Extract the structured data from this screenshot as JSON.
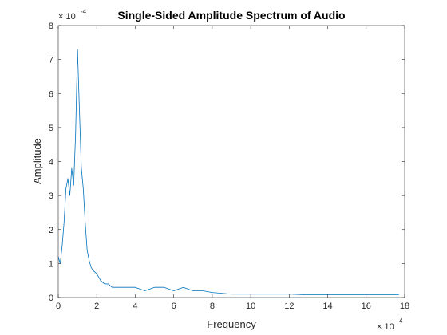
{
  "chart_data": {
    "type": "line",
    "title": "Single-Sided Amplitude Spectrum of Audio",
    "xlabel": "Frequency",
    "ylabel": "Amplitude",
    "xlim": [
      0,
      180000
    ],
    "ylim": [
      0,
      0.0008
    ],
    "x_ticks": [
      0,
      20000,
      40000,
      60000,
      80000,
      100000,
      120000,
      140000,
      160000,
      180000
    ],
    "x_tick_labels": [
      "0",
      "2",
      "4",
      "6",
      "8",
      "10",
      "12",
      "14",
      "16",
      "18"
    ],
    "y_ticks": [
      0,
      0.0001,
      0.0002,
      0.0003,
      0.0004,
      0.0005,
      0.0006,
      0.0007,
      0.0008
    ],
    "y_tick_labels": [
      "0",
      "1",
      "2",
      "3",
      "4",
      "5",
      "6",
      "7",
      "8"
    ],
    "x_exponent_label": "× 10",
    "x_exponent_power": "4",
    "y_exponent_label": "× 10",
    "y_exponent_power": "-4",
    "line_color": "#0072BD",
    "series": [
      {
        "x": [
          0,
          1000,
          2000,
          3000,
          4000,
          5000,
          6000,
          7000,
          8000,
          9000,
          10000,
          11000,
          12000,
          13000,
          14000,
          15000,
          16000,
          17000,
          18000,
          20000,
          22000,
          24000,
          26000,
          28000,
          30000,
          35000,
          40000,
          45000,
          50000,
          55000,
          60000,
          65000,
          70000,
          75000,
          80000,
          90000,
          100000,
          110000,
          120000,
          130000,
          140000,
          150000,
          160000,
          170000,
          177000
        ],
        "values": [
          0.00012,
          0.0001,
          0.00015,
          0.00022,
          0.00032,
          0.00035,
          0.0003,
          0.00038,
          0.00033,
          0.00048,
          0.00073,
          0.00055,
          0.00038,
          0.00032,
          0.00022,
          0.00014,
          0.00011,
          9e-05,
          8e-05,
          7e-05,
          5e-05,
          4e-05,
          4e-05,
          3e-05,
          3e-05,
          3e-05,
          3e-05,
          2e-05,
          3e-05,
          3e-05,
          2e-05,
          3e-05,
          2e-05,
          2e-05,
          1.5e-05,
          1e-05,
          1e-05,
          1e-05,
          1e-05,
          8e-06,
          8e-06,
          8e-06,
          8e-06,
          8e-06,
          8e-06
        ]
      }
    ],
    "grid": false,
    "box": true
  }
}
